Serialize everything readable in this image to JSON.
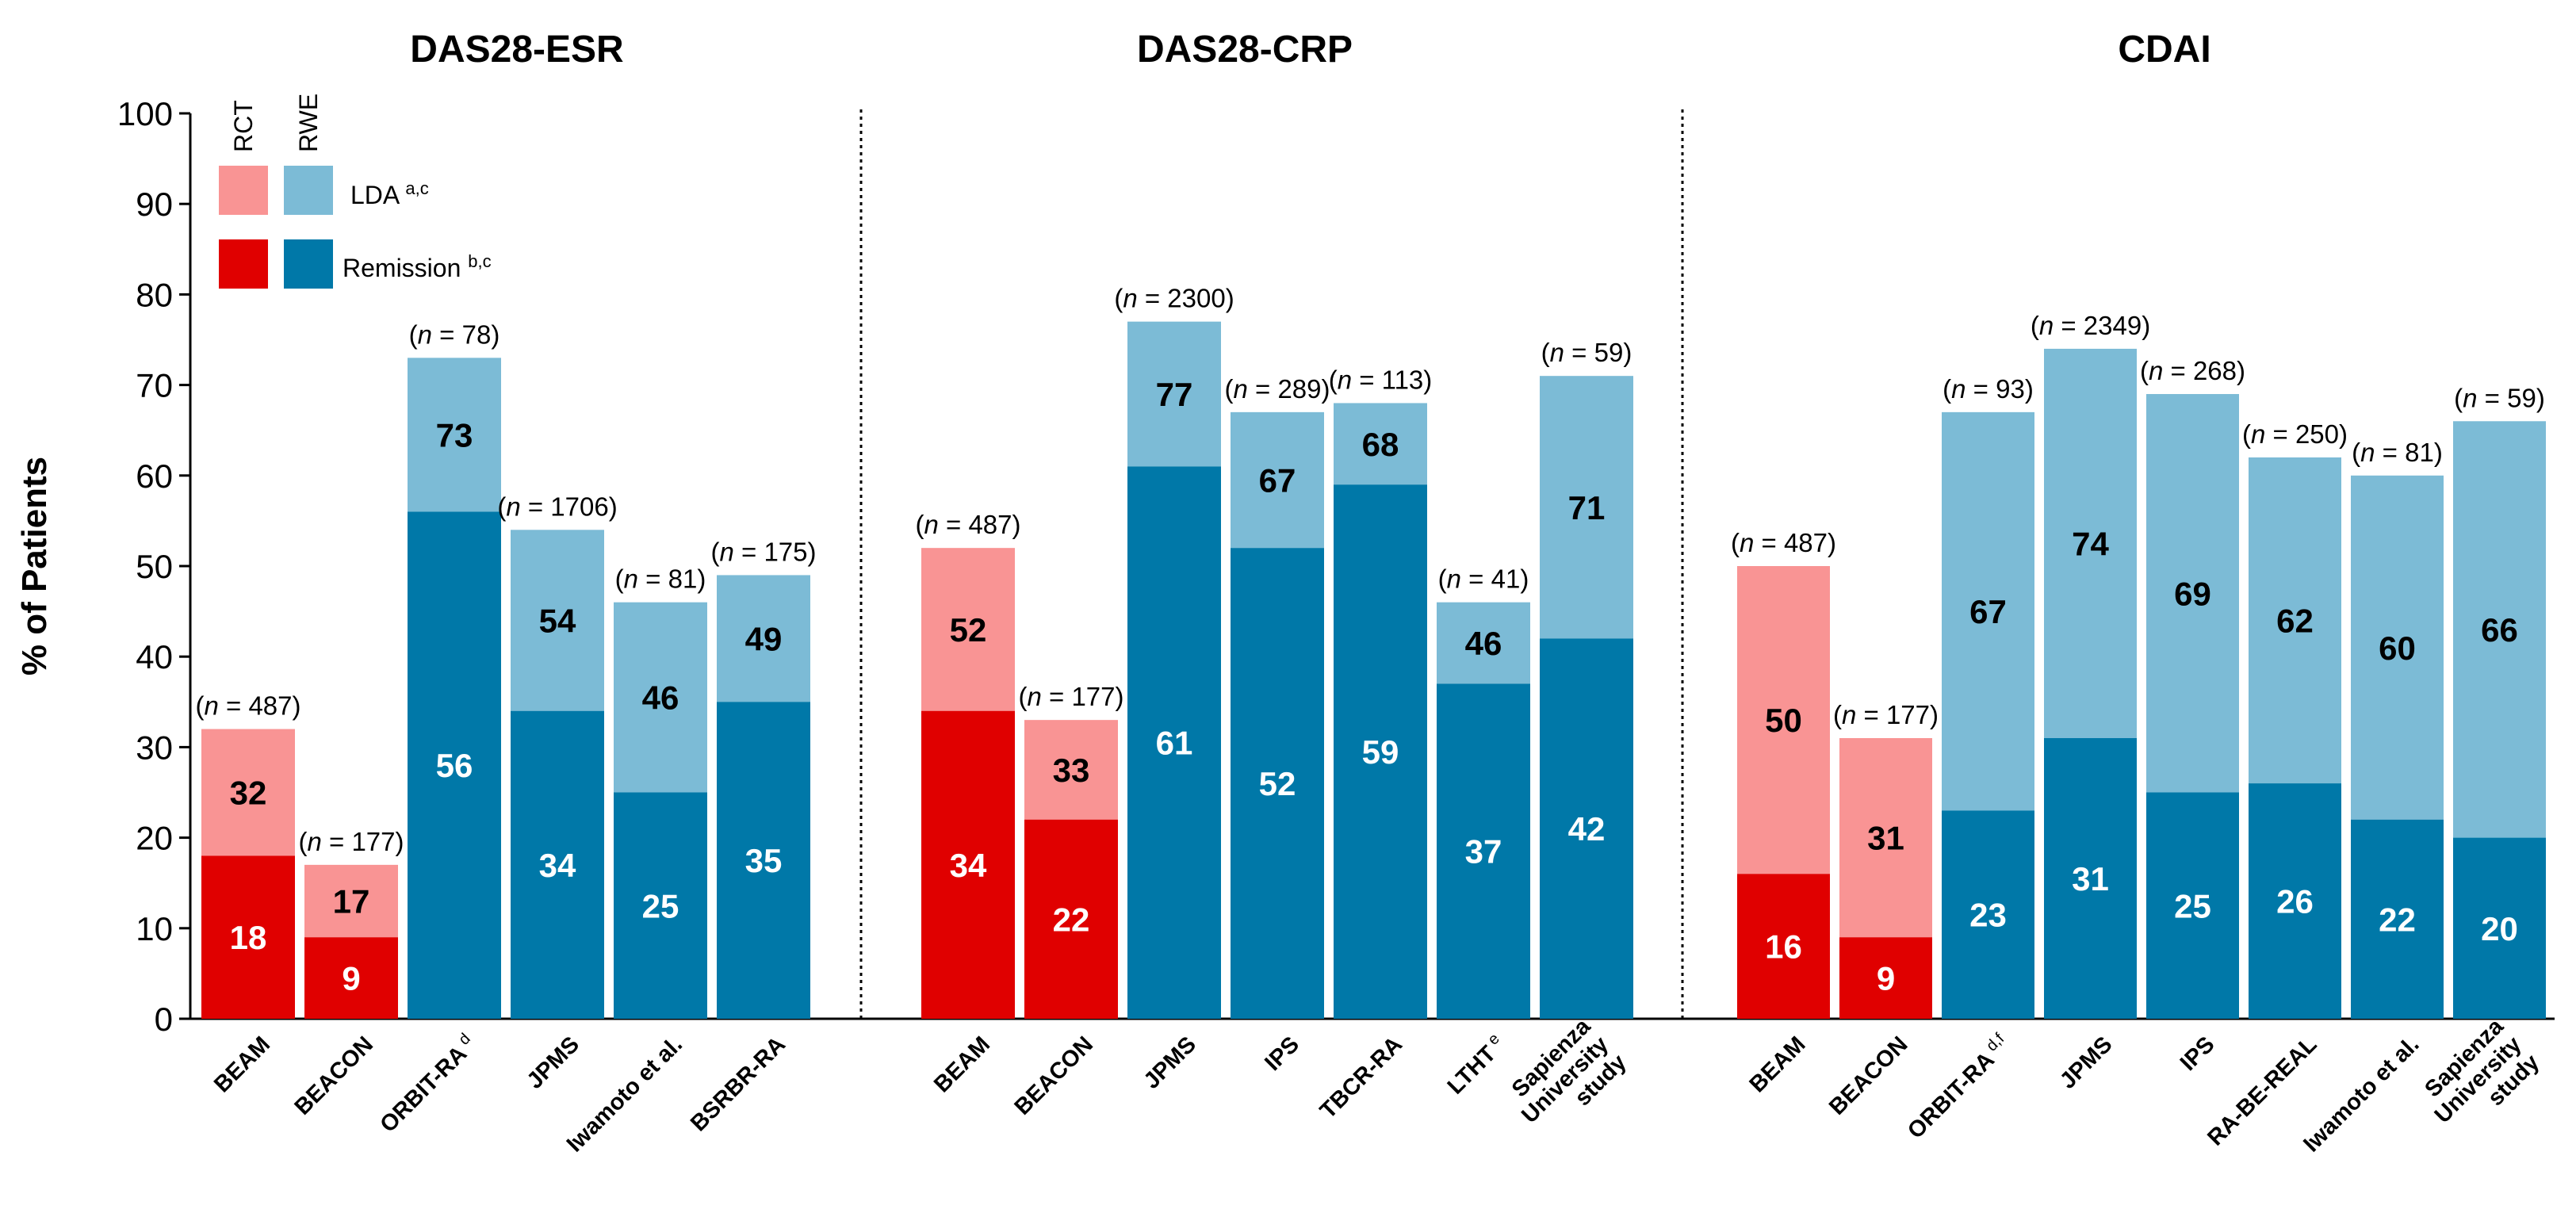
{
  "chart_data": {
    "type": "bar",
    "stacked": true,
    "ylabel": "% of Patients",
    "ylim": [
      0,
      100
    ],
    "yticks": [
      "0",
      "10",
      "20",
      "30",
      "40",
      "50",
      "60",
      "70",
      "80",
      "90",
      "100"
    ],
    "grid": false,
    "legend": {
      "placement": "top-left",
      "col_headers": [
        "RCT",
        "RWE"
      ],
      "rows": [
        {
          "label": "LDA",
          "sup": "a,c"
        },
        {
          "label": "Remission",
          "sup": "b,c"
        }
      ]
    },
    "colors": {
      "rct_lda": "#f99494",
      "rct_remission": "#e00000",
      "rwe_lda": "#7cbbd6",
      "rwe_remission": "#0078a8"
    },
    "panels": [
      {
        "title": "DAS28-ESR",
        "bars": [
          {
            "category": "BEAM",
            "sup": "",
            "study_type": "RCT",
            "n": "487",
            "remission": 18,
            "lda": 32
          },
          {
            "category": "BEACON",
            "sup": "",
            "study_type": "RCT",
            "n": "177",
            "remission": 9,
            "lda": 17
          },
          {
            "category": "ORBIT-RA",
            "sup": "d",
            "study_type": "RWE",
            "n": "78",
            "remission": 56,
            "lda": 73
          },
          {
            "category": "JPMS",
            "sup": "",
            "study_type": "RWE",
            "n": "1706",
            "remission": 34,
            "lda": 54
          },
          {
            "category": "Iwamoto et al.",
            "sup": "",
            "study_type": "RWE",
            "n": "81",
            "remission": 25,
            "lda": 46
          },
          {
            "category": "BSRBR-RA",
            "sup": "",
            "study_type": "RWE",
            "n": "175",
            "remission": 35,
            "lda": 49
          }
        ]
      },
      {
        "title": "DAS28-CRP",
        "bars": [
          {
            "category": "BEAM",
            "sup": "",
            "study_type": "RCT",
            "n": "487",
            "remission": 34,
            "lda": 52
          },
          {
            "category": "BEACON",
            "sup": "",
            "study_type": "RCT",
            "n": "177",
            "remission": 22,
            "lda": 33
          },
          {
            "category": "JPMS",
            "sup": "",
            "study_type": "RWE",
            "n": "2300",
            "remission": 61,
            "lda": 77
          },
          {
            "category": "IPS",
            "sup": "",
            "study_type": "RWE",
            "n": "289",
            "remission": 52,
            "lda": 67
          },
          {
            "category": "TBCR-RA",
            "sup": "",
            "study_type": "RWE",
            "n": "113",
            "remission": 59,
            "lda": 68
          },
          {
            "category": "LTHT",
            "sup": "e",
            "study_type": "RWE",
            "n": "41",
            "remission": 37,
            "lda": 46
          },
          {
            "category": "Sapienza University study",
            "sup": "",
            "study_type": "RWE",
            "n": "59",
            "remission": 42,
            "lda": 71
          }
        ]
      },
      {
        "title": "CDAI",
        "bars": [
          {
            "category": "BEAM",
            "sup": "",
            "study_type": "RCT",
            "n": "487",
            "remission": 16,
            "lda": 50
          },
          {
            "category": "BEACON",
            "sup": "",
            "study_type": "RCT",
            "n": "177",
            "remission": 9,
            "lda": 31
          },
          {
            "category": "ORBIT-RA",
            "sup": "d,f",
            "study_type": "RWE",
            "n": "93",
            "remission": 23,
            "lda": 67
          },
          {
            "category": "JPMS",
            "sup": "",
            "study_type": "RWE",
            "n": "2349",
            "remission": 31,
            "lda": 74
          },
          {
            "category": "IPS",
            "sup": "",
            "study_type": "RWE",
            "n": "268",
            "remission": 25,
            "lda": 69
          },
          {
            "category": "RA-BE-REAL",
            "sup": "",
            "study_type": "RWE",
            "n": "250",
            "remission": 26,
            "lda": 62
          },
          {
            "category": "Iwamoto et al.",
            "sup": "",
            "study_type": "RWE",
            "n": "81",
            "remission": 22,
            "lda": 60
          },
          {
            "category": "Sapienza University study",
            "sup": "",
            "study_type": "RWE",
            "n": "59",
            "remission": 20,
            "lda": 66
          }
        ]
      }
    ]
  }
}
